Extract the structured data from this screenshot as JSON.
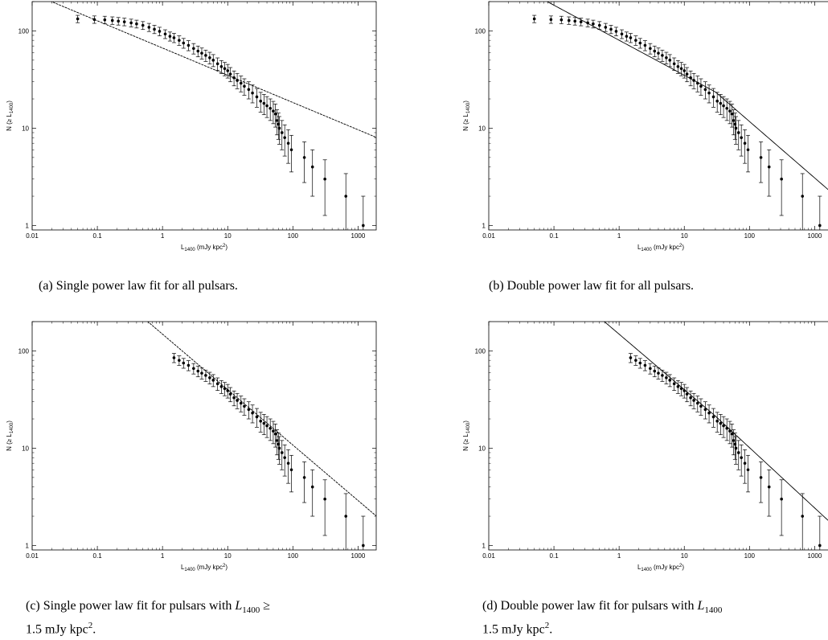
{
  "chart_data": [
    {
      "type": "scatter",
      "panel_caption": "(a) Single power law fit for all pulsars.",
      "xlabel": "L1400 (mJy kpc2)",
      "ylabel": "N (≥ L1400)",
      "xscale": "log",
      "yscale": "log",
      "xlim": [
        0.01,
        1900
      ],
      "ylim": [
        0.9,
        200
      ],
      "xticks": [
        "0.01",
        "0.1",
        "1",
        "10",
        "100",
        "1000"
      ],
      "yticks": [
        "1",
        "10",
        "100"
      ],
      "xmin_data": 0.05,
      "fit": {
        "kind": "single",
        "x0": 10,
        "y0": 35,
        "slope": -0.28
      },
      "grid": false
    },
    {
      "type": "scatter",
      "panel_caption": "(b) Double power law fit for all pulsars.",
      "xlabel": "L1400 (mJy kpc2)",
      "ylabel": "N (≥ L1400)",
      "xscale": "log",
      "yscale": "log",
      "xlim": [
        0.01,
        1900
      ],
      "ylim": [
        0.9,
        200
      ],
      "xticks": [
        "0.01",
        "0.1",
        "1",
        "10",
        "100",
        "1000"
      ],
      "yticks": [
        "1",
        "10",
        "100"
      ],
      "xmin_data": 0.05,
      "fit": {
        "kind": "double",
        "x0": 10,
        "y0": 35,
        "slope": -0.36,
        "xb": 30,
        "slope2": -0.58
      },
      "grid": false
    },
    {
      "type": "scatter",
      "panel_caption": "(c) Single power law fit for pulsars with L1400 ≥ 1.5 mJy kpc2.",
      "xlabel": "L1400 (mJy kpc2)",
      "ylabel": "N (≥ L1400)",
      "xscale": "log",
      "yscale": "log",
      "xlim": [
        0.01,
        1900
      ],
      "ylim": [
        0.9,
        200
      ],
      "xticks": [
        "0.01",
        "0.1",
        "1",
        "10",
        "100",
        "1000"
      ],
      "yticks": [
        "1",
        "10",
        "100"
      ],
      "xmin_data": 1.5,
      "fit": {
        "kind": "single",
        "x0": 10,
        "y0": 40,
        "slope": -0.57
      },
      "grid": false
    },
    {
      "type": "scatter",
      "panel_caption": "(d) Double power law fit for pulsars with L1400 ≥ 1.5 mJy kpc2.",
      "xlabel": "L1400 (mJy kpc2)",
      "ylabel": "N (≥ L1400)",
      "xscale": "log",
      "yscale": "log",
      "xlim": [
        0.01,
        1900
      ],
      "ylim": [
        0.9,
        200
      ],
      "xticks": [
        "0.01",
        "0.1",
        "1",
        "10",
        "100",
        "1000"
      ],
      "yticks": [
        "1",
        "10",
        "100"
      ],
      "xmin_data": 1.5,
      "fit": {
        "kind": "double",
        "x0": 10,
        "y0": 40,
        "slope": -0.57,
        "xb": 30,
        "slope2": -0.62
      },
      "grid": false
    }
  ],
  "points": [
    [
      0.05,
      133
    ],
    [
      0.09,
      131
    ],
    [
      0.13,
      130
    ],
    [
      0.17,
      128
    ],
    [
      0.21,
      126
    ],
    [
      0.26,
      124
    ],
    [
      0.33,
      121
    ],
    [
      0.4,
      118
    ],
    [
      0.5,
      114
    ],
    [
      0.62,
      109
    ],
    [
      0.75,
      104
    ],
    [
      0.9,
      99
    ],
    [
      1.1,
      93
    ],
    [
      1.3,
      88
    ],
    [
      1.5,
      85
    ],
    [
      1.8,
      80
    ],
    [
      2.1,
      75
    ],
    [
      2.5,
      71
    ],
    [
      3,
      66
    ],
    [
      3.5,
      62
    ],
    [
      4,
      59
    ],
    [
      4.6,
      56
    ],
    [
      5.3,
      53
    ],
    [
      6,
      50
    ],
    [
      7,
      46
    ],
    [
      8,
      43
    ],
    [
      9,
      41
    ],
    [
      10,
      39
    ],
    [
      11,
      36
    ],
    [
      12.5,
      33
    ],
    [
      14,
      31
    ],
    [
      16,
      29
    ],
    [
      18,
      27
    ],
    [
      21,
      25
    ],
    [
      24,
      23
    ],
    [
      28,
      21
    ],
    [
      32,
      19
    ],
    [
      36,
      18
    ],
    [
      40,
      17
    ],
    [
      45,
      16
    ],
    [
      50,
      15
    ],
    [
      54,
      14
    ],
    [
      57,
      12
    ],
    [
      60,
      11
    ],
    [
      62,
      10
    ],
    [
      68,
      9
    ],
    [
      75,
      8
    ],
    [
      85,
      7
    ],
    [
      95,
      6
    ],
    [
      150,
      5
    ],
    [
      200,
      4
    ],
    [
      310,
      3
    ],
    [
      650,
      2
    ],
    [
      1200,
      1
    ]
  ]
}
